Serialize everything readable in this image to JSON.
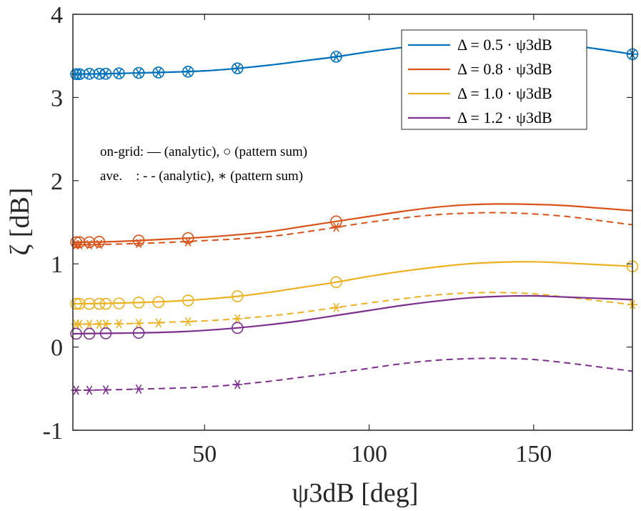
{
  "chart_data": {
    "type": "line",
    "xlabel": "ψ3dB [deg]",
    "ylabel": "ζ [dB]",
    "xlim": [
      10,
      180
    ],
    "ylim": [
      -1,
      4
    ],
    "xticks": [
      50,
      100,
      150
    ],
    "yticks": [
      -1,
      0,
      1,
      2,
      3,
      4
    ],
    "grid": false,
    "legend_position": "top-right",
    "annotations": [
      "on-grid: — (analytic), ○ (pattern sum)",
      "ave.    : - - (analytic), ∗ (pattern sum)"
    ],
    "marker_x": [
      11,
      12,
      15,
      18,
      20,
      24,
      30,
      36,
      45,
      60,
      90,
      180
    ],
    "series": [
      {
        "name": "Δ = 0.5 · ψ3dB",
        "color": "#0072BD",
        "ongrid_curve": [
          [
            10,
            3.28
          ],
          [
            20,
            3.285
          ],
          [
            30,
            3.295
          ],
          [
            40,
            3.305
          ],
          [
            50,
            3.32
          ],
          [
            60,
            3.35
          ],
          [
            70,
            3.39
          ],
          [
            80,
            3.44
          ],
          [
            90,
            3.49
          ],
          [
            100,
            3.55
          ],
          [
            110,
            3.6
          ],
          [
            120,
            3.63
          ],
          [
            130,
            3.655
          ],
          [
            140,
            3.665
          ],
          [
            150,
            3.66
          ],
          [
            160,
            3.63
          ],
          [
            170,
            3.58
          ],
          [
            180,
            3.52
          ]
        ],
        "ave_curve": [
          [
            10,
            3.28
          ],
          [
            20,
            3.285
          ],
          [
            30,
            3.295
          ],
          [
            40,
            3.305
          ],
          [
            50,
            3.32
          ],
          [
            60,
            3.35
          ],
          [
            70,
            3.39
          ],
          [
            80,
            3.44
          ],
          [
            90,
            3.49
          ],
          [
            100,
            3.55
          ],
          [
            110,
            3.6
          ],
          [
            120,
            3.63
          ],
          [
            130,
            3.655
          ],
          [
            140,
            3.665
          ],
          [
            150,
            3.66
          ],
          [
            160,
            3.63
          ],
          [
            170,
            3.58
          ],
          [
            180,
            3.52
          ]
        ],
        "circles": [
          [
            11,
            3.28
          ],
          [
            12,
            3.28
          ],
          [
            15,
            3.285
          ],
          [
            18,
            3.285
          ],
          [
            20,
            3.285
          ],
          [
            24,
            3.29
          ],
          [
            30,
            3.295
          ],
          [
            36,
            3.3
          ],
          [
            45,
            3.31
          ],
          [
            60,
            3.35
          ],
          [
            90,
            3.49
          ],
          [
            180,
            3.52
          ]
        ],
        "stars": [
          [
            11,
            3.28
          ],
          [
            12,
            3.28
          ],
          [
            15,
            3.285
          ],
          [
            18,
            3.285
          ],
          [
            20,
            3.285
          ],
          [
            24,
            3.29
          ],
          [
            30,
            3.295
          ],
          [
            36,
            3.3
          ],
          [
            45,
            3.31
          ],
          [
            60,
            3.35
          ],
          [
            90,
            3.49
          ],
          [
            180,
            3.52
          ]
        ]
      },
      {
        "name": "Δ = 0.8 · ψ3dB",
        "color": "#D95319",
        "ongrid_curve": [
          [
            10,
            1.26
          ],
          [
            20,
            1.265
          ],
          [
            30,
            1.28
          ],
          [
            40,
            1.3
          ],
          [
            50,
            1.32
          ],
          [
            60,
            1.35
          ],
          [
            70,
            1.39
          ],
          [
            80,
            1.45
          ],
          [
            90,
            1.51
          ],
          [
            100,
            1.57
          ],
          [
            110,
            1.63
          ],
          [
            120,
            1.68
          ],
          [
            130,
            1.71
          ],
          [
            140,
            1.72
          ],
          [
            150,
            1.715
          ],
          [
            160,
            1.7
          ],
          [
            170,
            1.67
          ],
          [
            180,
            1.64
          ]
        ],
        "ave_curve": [
          [
            10,
            1.23
          ],
          [
            20,
            1.235
          ],
          [
            30,
            1.245
          ],
          [
            40,
            1.26
          ],
          [
            50,
            1.28
          ],
          [
            60,
            1.3
          ],
          [
            70,
            1.33
          ],
          [
            80,
            1.38
          ],
          [
            90,
            1.44
          ],
          [
            100,
            1.5
          ],
          [
            110,
            1.55
          ],
          [
            120,
            1.59
          ],
          [
            130,
            1.61
          ],
          [
            140,
            1.615
          ],
          [
            150,
            1.6
          ],
          [
            160,
            1.57
          ],
          [
            170,
            1.52
          ],
          [
            180,
            1.47
          ]
        ],
        "circles": [
          [
            11,
            1.26
          ],
          [
            12,
            1.26
          ],
          [
            15,
            1.26
          ],
          [
            18,
            1.265
          ],
          [
            30,
            1.28
          ],
          [
            45,
            1.31
          ],
          [
            90,
            1.51
          ]
        ],
        "stars": [
          [
            11,
            1.23
          ],
          [
            12,
            1.23
          ],
          [
            15,
            1.23
          ],
          [
            18,
            1.235
          ],
          [
            30,
            1.245
          ],
          [
            45,
            1.265
          ],
          [
            90,
            1.44
          ]
        ]
      },
      {
        "name": "Δ = 1.0 · ψ3dB",
        "color": "#EDB120",
        "ongrid_curve": [
          [
            10,
            0.52
          ],
          [
            20,
            0.525
          ],
          [
            30,
            0.535
          ],
          [
            40,
            0.55
          ],
          [
            50,
            0.575
          ],
          [
            60,
            0.61
          ],
          [
            70,
            0.66
          ],
          [
            80,
            0.72
          ],
          [
            90,
            0.78
          ],
          [
            100,
            0.85
          ],
          [
            110,
            0.91
          ],
          [
            120,
            0.96
          ],
          [
            130,
            1.0
          ],
          [
            140,
            1.02
          ],
          [
            150,
            1.025
          ],
          [
            160,
            1.01
          ],
          [
            170,
            0.99
          ],
          [
            180,
            0.97
          ]
        ],
        "ave_curve": [
          [
            10,
            0.275
          ],
          [
            20,
            0.28
          ],
          [
            30,
            0.285
          ],
          [
            40,
            0.3
          ],
          [
            50,
            0.315
          ],
          [
            60,
            0.34
          ],
          [
            70,
            0.375
          ],
          [
            80,
            0.42
          ],
          [
            90,
            0.475
          ],
          [
            100,
            0.53
          ],
          [
            110,
            0.58
          ],
          [
            120,
            0.625
          ],
          [
            130,
            0.65
          ],
          [
            140,
            0.655
          ],
          [
            150,
            0.64
          ],
          [
            160,
            0.6
          ],
          [
            170,
            0.555
          ],
          [
            180,
            0.51
          ]
        ],
        "circles": [
          [
            11,
            0.52
          ],
          [
            12,
            0.52
          ],
          [
            15,
            0.52
          ],
          [
            18,
            0.52
          ],
          [
            20,
            0.52
          ],
          [
            24,
            0.525
          ],
          [
            30,
            0.535
          ],
          [
            36,
            0.54
          ],
          [
            45,
            0.56
          ],
          [
            60,
            0.61
          ],
          [
            90,
            0.78
          ],
          [
            180,
            0.97
          ]
        ],
        "stars": [
          [
            11,
            0.275
          ],
          [
            12,
            0.275
          ],
          [
            15,
            0.275
          ],
          [
            18,
            0.275
          ],
          [
            20,
            0.275
          ],
          [
            24,
            0.28
          ],
          [
            30,
            0.285
          ],
          [
            36,
            0.29
          ],
          [
            45,
            0.305
          ],
          [
            60,
            0.34
          ],
          [
            90,
            0.475
          ],
          [
            180,
            0.51
          ]
        ]
      },
      {
        "name": "Δ = 1.2 · ψ3dB",
        "color": "#7E2F8E",
        "ongrid_curve": [
          [
            10,
            0.16
          ],
          [
            20,
            0.165
          ],
          [
            30,
            0.17
          ],
          [
            40,
            0.18
          ],
          [
            50,
            0.2
          ],
          [
            60,
            0.23
          ],
          [
            70,
            0.27
          ],
          [
            80,
            0.32
          ],
          [
            90,
            0.38
          ],
          [
            100,
            0.44
          ],
          [
            110,
            0.5
          ],
          [
            120,
            0.55
          ],
          [
            130,
            0.59
          ],
          [
            140,
            0.61
          ],
          [
            150,
            0.615
          ],
          [
            160,
            0.6
          ],
          [
            170,
            0.585
          ],
          [
            180,
            0.57
          ]
        ],
        "ave_curve": [
          [
            10,
            -0.52
          ],
          [
            20,
            -0.515
          ],
          [
            30,
            -0.505
          ],
          [
            40,
            -0.495
          ],
          [
            50,
            -0.48
          ],
          [
            60,
            -0.45
          ],
          [
            70,
            -0.41
          ],
          [
            80,
            -0.36
          ],
          [
            90,
            -0.31
          ],
          [
            100,
            -0.255
          ],
          [
            110,
            -0.2
          ],
          [
            120,
            -0.16
          ],
          [
            130,
            -0.14
          ],
          [
            140,
            -0.135
          ],
          [
            150,
            -0.15
          ],
          [
            160,
            -0.19
          ],
          [
            170,
            -0.24
          ],
          [
            180,
            -0.29
          ]
        ],
        "circles": [
          [
            11,
            0.16
          ],
          [
            15,
            0.16
          ],
          [
            20,
            0.165
          ],
          [
            30,
            0.17
          ],
          [
            60,
            0.23
          ]
        ],
        "stars": [
          [
            11,
            -0.52
          ],
          [
            15,
            -0.52
          ],
          [
            20,
            -0.515
          ],
          [
            30,
            -0.505
          ],
          [
            60,
            -0.45
          ]
        ]
      }
    ]
  }
}
